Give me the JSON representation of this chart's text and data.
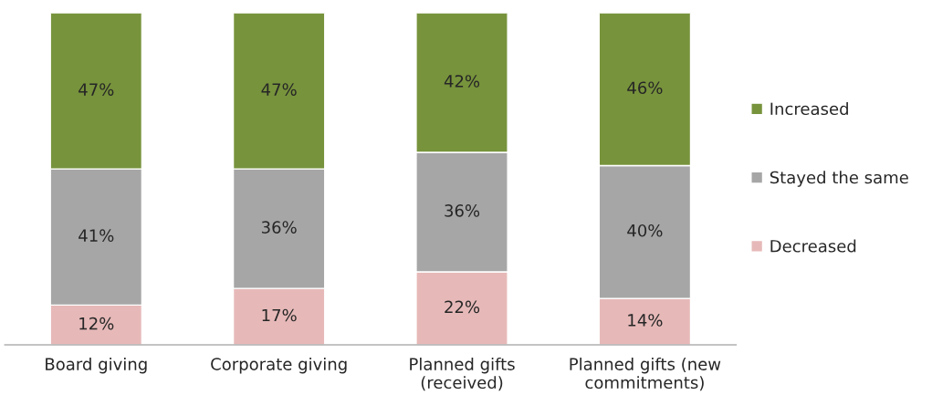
{
  "chart_data": {
    "type": "bar",
    "stacked": true,
    "categories": [
      "Board giving",
      "Corporate giving",
      "Planned gifts\n(received)",
      "Planned gifts (new\ncommitments)"
    ],
    "series": [
      {
        "name": "Decreased",
        "color": "#e6b9b8",
        "values": [
          12,
          17,
          22,
          14
        ],
        "value_labels": [
          "12%",
          "17%",
          "22%",
          "14%"
        ]
      },
      {
        "name": "Stayed the same",
        "color": "#a6a6a6",
        "values": [
          41,
          36,
          36,
          40
        ],
        "value_labels": [
          "41%",
          "36%",
          "36%",
          "40%"
        ]
      },
      {
        "name": "Increased",
        "color": "#77933c",
        "values": [
          47,
          47,
          42,
          46
        ],
        "value_labels": [
          "47%",
          "47%",
          "42%",
          "46%"
        ]
      }
    ],
    "ylim": [
      0,
      100
    ],
    "tick_labels": "x",
    "grid": false,
    "legend": "right"
  }
}
